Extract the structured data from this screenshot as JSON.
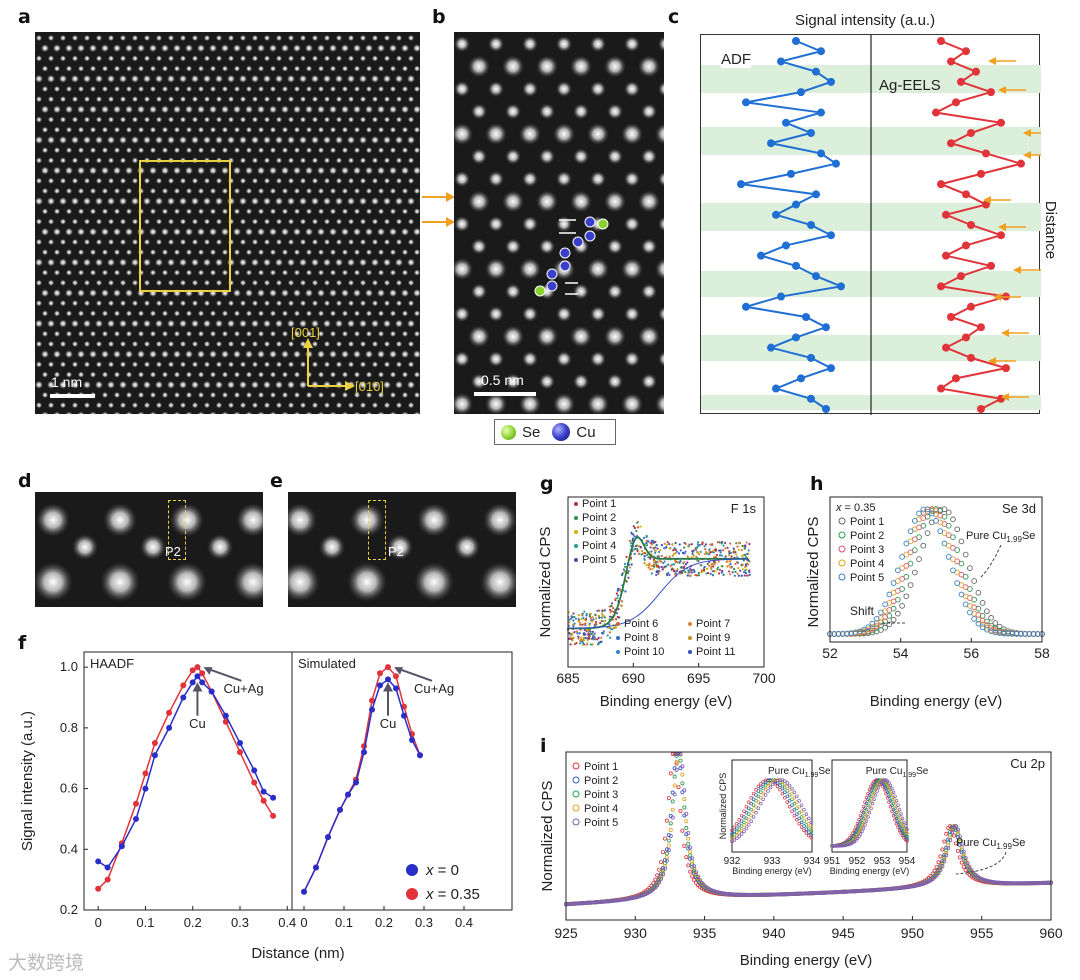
{
  "panels": {
    "a": {
      "label": "a",
      "scale": "1 nm",
      "axis_v": "[001]",
      "axis_h": "[010]"
    },
    "b": {
      "label": "b",
      "scale": "0.5 nm",
      "legend": [
        {
          "name": "Se",
          "color": "#8ad12f"
        },
        {
          "name": "Cu",
          "color": "#2a2ea0"
        }
      ]
    },
    "c": {
      "label": "c",
      "title": "Signal intensity (a.u.)",
      "left_label": "ADF",
      "right_label": "Ag-EELS",
      "side_label": "Distance",
      "adf_color": "#1f6fd4",
      "eels_color": "#e0343a",
      "arrow_color": "#f0a020",
      "band_color": "#dcefdb"
    },
    "d": {
      "label": "d",
      "marker": "P2"
    },
    "e": {
      "label": "e",
      "marker": "P2"
    }
  },
  "chart_data": [
    {
      "id": "f",
      "type": "line",
      "title_left": "HAADF",
      "title_right": "Simulated",
      "ylabel": "Signal intensity (a.u.)",
      "xlabel": "Distance (nm)",
      "ylim": [
        0.2,
        1.05
      ],
      "xlim_left": [
        -0.03,
        0.41
      ],
      "xlim_right": [
        -0.03,
        0.52
      ],
      "yticks": [
        "0.2",
        "0.4",
        "0.6",
        "0.8",
        "1.0"
      ],
      "xticks_left": [
        "0",
        "0.1",
        "0.2",
        "0.3",
        "0.4"
      ],
      "xticks_right": [
        "0",
        "0.1",
        "0.2",
        "0.3",
        "0.4"
      ],
      "annot_cu": "Cu",
      "annot_cuag": "Cu+Ag",
      "legend": [
        {
          "name": "x = 0",
          "prefix": "x",
          "suffix": " = 0",
          "color": "#2a2ec8"
        },
        {
          "name": "x = 0.35",
          "prefix": "x",
          "suffix": " = 0.35",
          "color": "#e0343a"
        }
      ],
      "series_left": [
        {
          "name": "x = 0",
          "color": "#2a2ec8",
          "x": [
            0,
            0.02,
            0.05,
            0.08,
            0.1,
            0.12,
            0.15,
            0.18,
            0.2,
            0.21,
            0.22,
            0.24,
            0.27,
            0.3,
            0.33,
            0.35,
            0.37
          ],
          "y": [
            0.36,
            0.34,
            0.41,
            0.5,
            0.6,
            0.71,
            0.8,
            0.9,
            0.95,
            0.97,
            0.95,
            0.92,
            0.84,
            0.75,
            0.66,
            0.59,
            0.57
          ]
        },
        {
          "name": "x = 0.35",
          "color": "#e0343a",
          "x": [
            0,
            0.02,
            0.05,
            0.08,
            0.1,
            0.12,
            0.15,
            0.18,
            0.2,
            0.21,
            0.22,
            0.24,
            0.27,
            0.3,
            0.33,
            0.35,
            0.37
          ],
          "y": [
            0.27,
            0.3,
            0.42,
            0.55,
            0.65,
            0.75,
            0.85,
            0.94,
            0.99,
            1.0,
            0.98,
            0.92,
            0.82,
            0.72,
            0.62,
            0.56,
            0.51
          ]
        }
      ],
      "series_right": [
        {
          "name": "x = 0",
          "color": "#2a2ec8",
          "x": [
            0,
            0.03,
            0.06,
            0.09,
            0.11,
            0.13,
            0.15,
            0.17,
            0.19,
            0.21,
            0.23,
            0.25,
            0.27,
            0.29
          ],
          "y": [
            0.26,
            0.34,
            0.44,
            0.53,
            0.58,
            0.62,
            0.72,
            0.86,
            0.94,
            0.96,
            0.93,
            0.84,
            0.76,
            0.71
          ]
        },
        {
          "name": "x = 0.35",
          "color": "#e0343a",
          "x": [
            0,
            0.03,
            0.06,
            0.09,
            0.11,
            0.13,
            0.15,
            0.17,
            0.19,
            0.21,
            0.23,
            0.25,
            0.27,
            0.29
          ],
          "y": [
            0.26,
            0.34,
            0.44,
            0.53,
            0.58,
            0.63,
            0.74,
            0.89,
            0.98,
            1.0,
            0.97,
            0.87,
            0.78,
            0.71
          ]
        }
      ]
    },
    {
      "id": "g",
      "type": "scatter",
      "title": "F 1s",
      "ylabel": "Normalized CPS",
      "xlabel": "Binding energy (eV)",
      "xlim": [
        685,
        700
      ],
      "xticks": [
        "685",
        "690",
        "695",
        "700"
      ],
      "legend_top": [
        "Point 1",
        "Point 2",
        "Point 3",
        "Point 4",
        "Point 5"
      ],
      "legend_bottom": [
        "Point 6",
        "Point 7",
        "Point 8",
        "Point 9",
        "Point 10",
        "Point 11"
      ],
      "colors": [
        "#c03030",
        "#2a8f4a",
        "#d8b000",
        "#2a9a9a",
        "#7a3a9a",
        "#d86030",
        "#e08040",
        "#3a6ad0",
        "#c89020",
        "#3a80c8",
        "#3050c0"
      ]
    },
    {
      "id": "h",
      "type": "scatter",
      "title": "Se 3d",
      "subtitle_prefix": "x",
      "subtitle_suffix": " = 0.35",
      "ylabel": "Normalized CPS",
      "xlabel": "Binding energy (eV)",
      "xlim": [
        52,
        58
      ],
      "xticks": [
        "52",
        "54",
        "56",
        "58"
      ],
      "legend": [
        "Point 1",
        "Point 2",
        "Point 3",
        "Point 4",
        "Point 5"
      ],
      "colors": [
        "#666666",
        "#2a9a4a",
        "#e05070",
        "#e0a020",
        "#3a80c8"
      ],
      "annot_pure": "Pure Cu",
      "annot_pure_sub": "1.99",
      "annot_pure_end": "Se",
      "annot_shift": "Shift",
      "peak_centers": [
        55.2,
        55.0,
        54.9,
        54.8,
        54.7
      ]
    },
    {
      "id": "i",
      "type": "scatter",
      "title": "Cu 2p",
      "ylabel": "Normalized CPS",
      "xlabel": "Binding energy (eV)",
      "xlim": [
        925,
        960
      ],
      "xticks": [
        "925",
        "930",
        "935",
        "940",
        "945",
        "950",
        "955",
        "960"
      ],
      "legend": [
        "Point 1",
        "Point 2",
        "Point 3",
        "Point 4",
        "Point 5"
      ],
      "colors": [
        "#e0343a",
        "#2a5ab8",
        "#2a9a4a",
        "#e0a020",
        "#7a5ab8"
      ],
      "annot_pure": "Pure Cu",
      "annot_pure_sub": "1.99",
      "annot_pure_end": "Se",
      "inset1": {
        "xticks": [
          "932",
          "933",
          "934"
        ],
        "xlabel": "Binding energy (eV)",
        "ylabel": "Normalized CPS"
      },
      "inset2": {
        "xticks": [
          "951",
          "952",
          "953",
          "954"
        ],
        "xlabel": "Binding energy (eV)"
      }
    }
  ],
  "watermark": "大数跨境"
}
